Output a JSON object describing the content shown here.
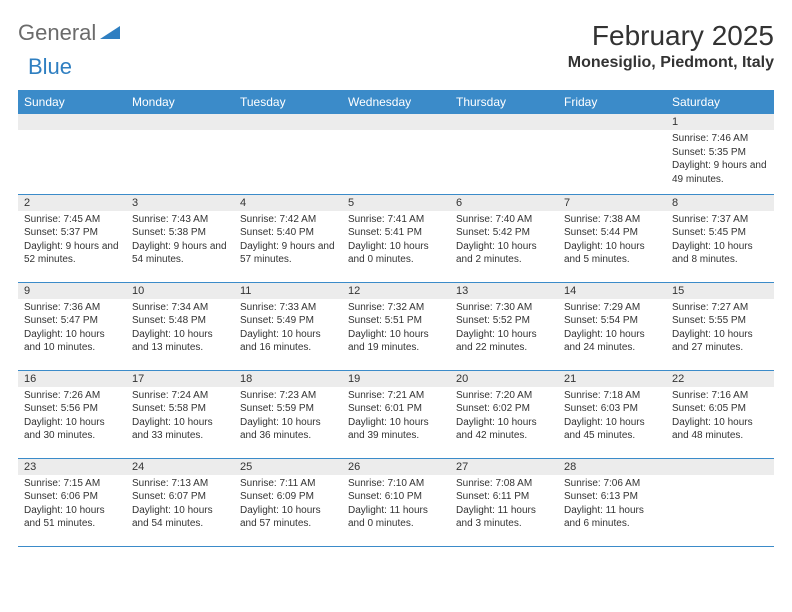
{
  "logo": {
    "word1": "General",
    "word2": "Blue"
  },
  "title": "February 2025",
  "location": "Monesiglio, Piedmont, Italy",
  "colors": {
    "header_bg": "#3b8bc9",
    "header_text": "#ffffff",
    "row_divider": "#3b8bc9",
    "daynum_bg": "#ececec",
    "logo_gray": "#6b6b6b",
    "logo_blue": "#2f7fc1",
    "text": "#333333",
    "background": "#ffffff"
  },
  "typography": {
    "title_fontsize": 28,
    "location_fontsize": 16,
    "dayheader_fontsize": 12,
    "daynum_fontsize": 11,
    "body_fontsize": 10
  },
  "day_headers": [
    "Sunday",
    "Monday",
    "Tuesday",
    "Wednesday",
    "Thursday",
    "Friday",
    "Saturday"
  ],
  "weeks": [
    [
      null,
      null,
      null,
      null,
      null,
      null,
      {
        "n": "1",
        "sunrise": "Sunrise: 7:46 AM",
        "sunset": "Sunset: 5:35 PM",
        "daylight": "Daylight: 9 hours and 49 minutes."
      }
    ],
    [
      {
        "n": "2",
        "sunrise": "Sunrise: 7:45 AM",
        "sunset": "Sunset: 5:37 PM",
        "daylight": "Daylight: 9 hours and 52 minutes."
      },
      {
        "n": "3",
        "sunrise": "Sunrise: 7:43 AM",
        "sunset": "Sunset: 5:38 PM",
        "daylight": "Daylight: 9 hours and 54 minutes."
      },
      {
        "n": "4",
        "sunrise": "Sunrise: 7:42 AM",
        "sunset": "Sunset: 5:40 PM",
        "daylight": "Daylight: 9 hours and 57 minutes."
      },
      {
        "n": "5",
        "sunrise": "Sunrise: 7:41 AM",
        "sunset": "Sunset: 5:41 PM",
        "daylight": "Daylight: 10 hours and 0 minutes."
      },
      {
        "n": "6",
        "sunrise": "Sunrise: 7:40 AM",
        "sunset": "Sunset: 5:42 PM",
        "daylight": "Daylight: 10 hours and 2 minutes."
      },
      {
        "n": "7",
        "sunrise": "Sunrise: 7:38 AM",
        "sunset": "Sunset: 5:44 PM",
        "daylight": "Daylight: 10 hours and 5 minutes."
      },
      {
        "n": "8",
        "sunrise": "Sunrise: 7:37 AM",
        "sunset": "Sunset: 5:45 PM",
        "daylight": "Daylight: 10 hours and 8 minutes."
      }
    ],
    [
      {
        "n": "9",
        "sunrise": "Sunrise: 7:36 AM",
        "sunset": "Sunset: 5:47 PM",
        "daylight": "Daylight: 10 hours and 10 minutes."
      },
      {
        "n": "10",
        "sunrise": "Sunrise: 7:34 AM",
        "sunset": "Sunset: 5:48 PM",
        "daylight": "Daylight: 10 hours and 13 minutes."
      },
      {
        "n": "11",
        "sunrise": "Sunrise: 7:33 AM",
        "sunset": "Sunset: 5:49 PM",
        "daylight": "Daylight: 10 hours and 16 minutes."
      },
      {
        "n": "12",
        "sunrise": "Sunrise: 7:32 AM",
        "sunset": "Sunset: 5:51 PM",
        "daylight": "Daylight: 10 hours and 19 minutes."
      },
      {
        "n": "13",
        "sunrise": "Sunrise: 7:30 AM",
        "sunset": "Sunset: 5:52 PM",
        "daylight": "Daylight: 10 hours and 22 minutes."
      },
      {
        "n": "14",
        "sunrise": "Sunrise: 7:29 AM",
        "sunset": "Sunset: 5:54 PM",
        "daylight": "Daylight: 10 hours and 24 minutes."
      },
      {
        "n": "15",
        "sunrise": "Sunrise: 7:27 AM",
        "sunset": "Sunset: 5:55 PM",
        "daylight": "Daylight: 10 hours and 27 minutes."
      }
    ],
    [
      {
        "n": "16",
        "sunrise": "Sunrise: 7:26 AM",
        "sunset": "Sunset: 5:56 PM",
        "daylight": "Daylight: 10 hours and 30 minutes."
      },
      {
        "n": "17",
        "sunrise": "Sunrise: 7:24 AM",
        "sunset": "Sunset: 5:58 PM",
        "daylight": "Daylight: 10 hours and 33 minutes."
      },
      {
        "n": "18",
        "sunrise": "Sunrise: 7:23 AM",
        "sunset": "Sunset: 5:59 PM",
        "daylight": "Daylight: 10 hours and 36 minutes."
      },
      {
        "n": "19",
        "sunrise": "Sunrise: 7:21 AM",
        "sunset": "Sunset: 6:01 PM",
        "daylight": "Daylight: 10 hours and 39 minutes."
      },
      {
        "n": "20",
        "sunrise": "Sunrise: 7:20 AM",
        "sunset": "Sunset: 6:02 PM",
        "daylight": "Daylight: 10 hours and 42 minutes."
      },
      {
        "n": "21",
        "sunrise": "Sunrise: 7:18 AM",
        "sunset": "Sunset: 6:03 PM",
        "daylight": "Daylight: 10 hours and 45 minutes."
      },
      {
        "n": "22",
        "sunrise": "Sunrise: 7:16 AM",
        "sunset": "Sunset: 6:05 PM",
        "daylight": "Daylight: 10 hours and 48 minutes."
      }
    ],
    [
      {
        "n": "23",
        "sunrise": "Sunrise: 7:15 AM",
        "sunset": "Sunset: 6:06 PM",
        "daylight": "Daylight: 10 hours and 51 minutes."
      },
      {
        "n": "24",
        "sunrise": "Sunrise: 7:13 AM",
        "sunset": "Sunset: 6:07 PM",
        "daylight": "Daylight: 10 hours and 54 minutes."
      },
      {
        "n": "25",
        "sunrise": "Sunrise: 7:11 AM",
        "sunset": "Sunset: 6:09 PM",
        "daylight": "Daylight: 10 hours and 57 minutes."
      },
      {
        "n": "26",
        "sunrise": "Sunrise: 7:10 AM",
        "sunset": "Sunset: 6:10 PM",
        "daylight": "Daylight: 11 hours and 0 minutes."
      },
      {
        "n": "27",
        "sunrise": "Sunrise: 7:08 AM",
        "sunset": "Sunset: 6:11 PM",
        "daylight": "Daylight: 11 hours and 3 minutes."
      },
      {
        "n": "28",
        "sunrise": "Sunrise: 7:06 AM",
        "sunset": "Sunset: 6:13 PM",
        "daylight": "Daylight: 11 hours and 6 minutes."
      },
      null
    ]
  ]
}
